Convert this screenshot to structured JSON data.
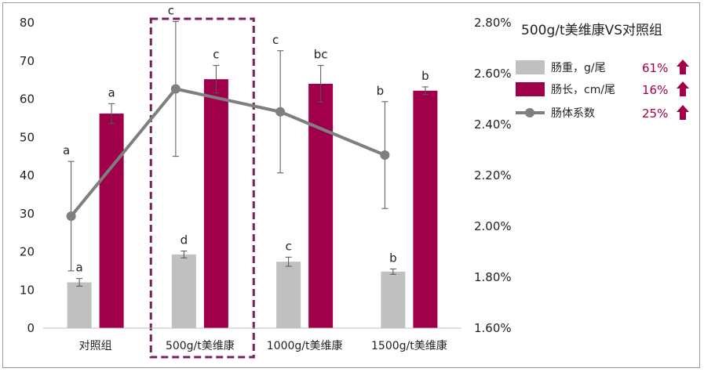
{
  "chart_data": {
    "type": "bar",
    "title": "500g/t美维康VS对照组",
    "categories": [
      "对照组",
      "500g/t美维康",
      "1000g/t美维康",
      "1500g/t美维康"
    ],
    "highlight_category": 1,
    "y_left": {
      "min": 0,
      "max": 80,
      "ticks": [
        "0",
        "10",
        "20",
        "30",
        "40",
        "50",
        "60",
        "70",
        "80"
      ]
    },
    "y_right": {
      "min": 1.6,
      "max": 2.8,
      "ticks": [
        "1.60%",
        "1.80%",
        "2.00%",
        "2.20%",
        "2.40%",
        "2.60%",
        "2.80%"
      ]
    },
    "series": [
      {
        "name": "肠重，g/尾",
        "kind": "bar",
        "axis": "left",
        "color": "#c0c0c0",
        "values": [
          12,
          19.3,
          17.4,
          14.8
        ],
        "errors": [
          1,
          0.9,
          1.2,
          0.7
        ],
        "labels": [
          "a",
          "d",
          "c",
          "b"
        ],
        "change": "61%"
      },
      {
        "name": "肠长，cm/尾",
        "kind": "bar",
        "axis": "left",
        "color": "#a0004a",
        "values": [
          56.2,
          65.2,
          64,
          62.2
        ],
        "errors": [
          2.6,
          3.6,
          4.8,
          1
        ],
        "labels": [
          "a",
          "c",
          "bc",
          "b"
        ],
        "change": "16%"
      },
      {
        "name": "肠体系数",
        "kind": "line",
        "axis": "right",
        "color": "#7f7f7f",
        "values": [
          2.04,
          2.54,
          2.45,
          2.28
        ],
        "errors": [
          0.215,
          0.265,
          0.24,
          0.21
        ],
        "labels": [
          "a",
          "c",
          "c",
          "b"
        ],
        "change": "25%"
      }
    ],
    "legend_position": "top-right"
  }
}
